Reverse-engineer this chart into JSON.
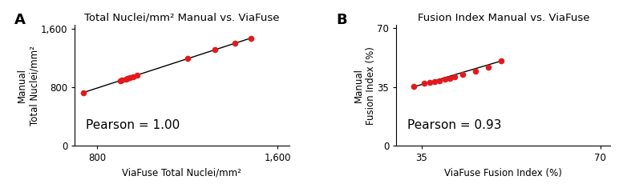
{
  "plot_A": {
    "title": "Total Nuclei/mm² Manual vs. ViaFuse",
    "xlabel": "ViaFuse Total Nuclei/mm²",
    "ylabel": "Manual\nTotal Nuclei/mm²",
    "pearson_text": "Pearson = 1.00",
    "xlim": [
      700,
      1650
    ],
    "ylim": [
      0,
      1650
    ],
    "xticks": [
      800,
      1600
    ],
    "yticks": [
      0,
      800,
      1600
    ],
    "ytick_labels": [
      "0",
      "800",
      "1,600"
    ],
    "xtick_labels": [
      "800",
      "1,600"
    ],
    "scatter_x": [
      740,
      900,
      910,
      925,
      935,
      945,
      960,
      975,
      1200,
      1320,
      1410,
      1480
    ],
    "scatter_y": [
      730,
      890,
      900,
      912,
      922,
      932,
      947,
      960,
      1190,
      1310,
      1400,
      1470
    ],
    "line_x": [
      740,
      1480
    ],
    "line_y": [
      730,
      1470
    ],
    "dot_color": "#e31a1c",
    "line_color": "#000000"
  },
  "plot_B": {
    "title": "Fusion Index Manual vs. ViaFuse",
    "xlabel": "ViaFuse Fusion Index (%)",
    "ylabel": "Manual\nFusion Index (%)",
    "pearson_text": "Pearson = 0.93",
    "xlim": [
      30,
      72
    ],
    "ylim": [
      0,
      72
    ],
    "xticks": [
      35,
      70
    ],
    "yticks": [
      0,
      35,
      70
    ],
    "ytick_labels": [
      "0",
      "35",
      "70"
    ],
    "xtick_labels": [
      "35",
      "70"
    ],
    "scatter_x": [
      33.5,
      35.5,
      36.5,
      37.5,
      38.5,
      39.5,
      40.5,
      41.5,
      43.0,
      45.5,
      48.0,
      50.5
    ],
    "scatter_y": [
      35.2,
      37.5,
      37.8,
      38.5,
      38.8,
      39.5,
      40.3,
      41.0,
      42.5,
      44.5,
      47.0,
      50.5
    ],
    "line_x": [
      33.5,
      50.5
    ],
    "line_y": [
      35.2,
      50.5
    ],
    "dot_color": "#e31a1c",
    "line_color": "#000000"
  },
  "label_fontsize": 8.5,
  "title_fontsize": 9.5,
  "pearson_fontsize": 11,
  "panel_label_fontsize": 13,
  "bg_color": "#ffffff"
}
